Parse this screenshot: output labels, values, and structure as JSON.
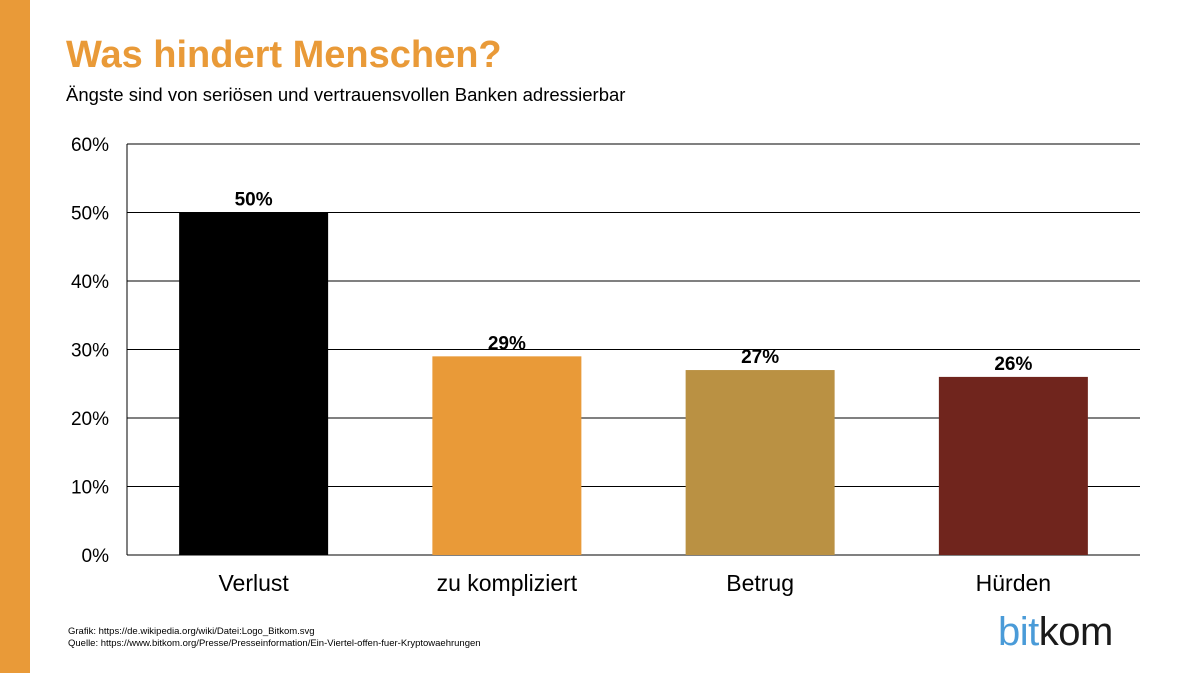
{
  "header": {
    "title": "Was hindert Menschen?",
    "subtitle": "Ängste sind von seriösen und vertrauensvollen Banken adressierbar"
  },
  "colors": {
    "accent": "#E99A38",
    "title": "#E99A38",
    "logo_bit": "#4A9BD8",
    "logo_kom": "#1A1A1A"
  },
  "chart_data": {
    "type": "bar",
    "categories": [
      "Verlust",
      "zu kompliziert",
      "Betrug",
      "Hürden"
    ],
    "values": [
      50,
      29,
      27,
      26
    ],
    "value_labels": [
      "50%",
      "29%",
      "27%",
      "26%"
    ],
    "bar_colors": [
      "#000000",
      "#E99A38",
      "#BA9143",
      "#70251D"
    ],
    "ylim": [
      0,
      60
    ],
    "yticks": [
      0,
      10,
      20,
      30,
      40,
      50,
      60
    ],
    "ytick_labels": [
      "0%",
      "10%",
      "20%",
      "30%",
      "40%",
      "50%",
      "60%"
    ],
    "grid": true,
    "xlabel": "",
    "ylabel": ""
  },
  "footer": {
    "line1": "Grafik: https://de.wikipedia.org/wiki/Datei:Logo_Bitkom.svg",
    "line2": "Quelle: https://www.bitkom.org/Presse/Presseinformation/Ein-Viertel-offen-fuer-Kryptowaehrungen"
  },
  "logo": {
    "part1": "bit",
    "part2": "kom"
  }
}
